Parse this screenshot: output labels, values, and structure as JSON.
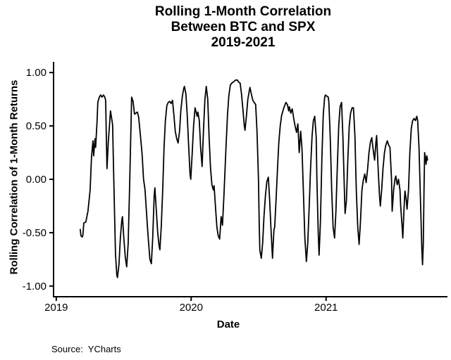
{
  "page": {
    "background": "#ffffff"
  },
  "title": {
    "line1": "Rolling 1-Month Correlation",
    "line2": "Between BTC and SPX",
    "line3": "2019-2021"
  },
  "source": {
    "text": "Source:  YCharts"
  },
  "chart_data": {
    "type": "line",
    "title": "Rolling 1-Month Correlation Between BTC and SPX 2019-2021",
    "xlabel": "Date",
    "ylabel": "Rolling Correlation of 1-Month Returns",
    "grid": false,
    "legend": "none",
    "line_color": "#000000",
    "axis_color": "#000000",
    "xlim": [
      2018.98,
      2021.9
    ],
    "ylim": [
      -1.1,
      1.1
    ],
    "x_ticks": [
      {
        "value": 2019,
        "label": "2019"
      },
      {
        "value": 2020,
        "label": "2020"
      },
      {
        "value": 2021,
        "label": "2021"
      }
    ],
    "y_ticks": [
      {
        "value": 1.0,
        "label": "1.00"
      },
      {
        "value": 0.5,
        "label": "0.50"
      },
      {
        "value": 0.0,
        "label": "0.00"
      },
      {
        "value": -0.5,
        "label": "-0.50"
      },
      {
        "value": -1.0,
        "label": "-1.00"
      }
    ],
    "series": [
      {
        "name": "Rolling 1-month correlation of BTC and SPX returns",
        "points": [
          [
            2019.178,
            -0.47
          ],
          [
            2019.183,
            -0.53
          ],
          [
            2019.193,
            -0.54
          ],
          [
            2019.198,
            -0.52
          ],
          [
            2019.204,
            -0.41
          ],
          [
            2019.219,
            -0.4
          ],
          [
            2019.235,
            -0.3
          ],
          [
            2019.251,
            -0.1
          ],
          [
            2019.261,
            0.2
          ],
          [
            2019.272,
            0.36
          ],
          [
            2019.277,
            0.22
          ],
          [
            2019.287,
            0.38
          ],
          [
            2019.292,
            0.3
          ],
          [
            2019.303,
            0.55
          ],
          [
            2019.308,
            0.72
          ],
          [
            2019.319,
            0.77
          ],
          [
            2019.329,
            0.79
          ],
          [
            2019.339,
            0.77
          ],
          [
            2019.35,
            0.79
          ],
          [
            2019.36,
            0.77
          ],
          [
            2019.366,
            0.74
          ],
          [
            2019.371,
            0.4
          ],
          [
            2019.376,
            0.1
          ],
          [
            2019.386,
            0.35
          ],
          [
            2019.402,
            0.64
          ],
          [
            2019.413,
            0.55
          ],
          [
            2019.418,
            0.51
          ],
          [
            2019.423,
            0.2
          ],
          [
            2019.428,
            -0.1
          ],
          [
            2019.439,
            -0.7
          ],
          [
            2019.449,
            -0.9
          ],
          [
            2019.454,
            -0.92
          ],
          [
            2019.465,
            -0.8
          ],
          [
            2019.475,
            -0.55
          ],
          [
            2019.486,
            -0.38
          ],
          [
            2019.491,
            -0.35
          ],
          [
            2019.501,
            -0.55
          ],
          [
            2019.512,
            -0.73
          ],
          [
            2019.522,
            -0.82
          ],
          [
            2019.533,
            -0.6
          ],
          [
            2019.543,
            -0.1
          ],
          [
            2019.554,
            0.5
          ],
          [
            2019.559,
            0.77
          ],
          [
            2019.569,
            0.73
          ],
          [
            2019.58,
            0.61
          ],
          [
            2019.59,
            0.62
          ],
          [
            2019.601,
            0.63
          ],
          [
            2019.611,
            0.58
          ],
          [
            2019.621,
            0.45
          ],
          [
            2019.632,
            0.3
          ],
          [
            2019.637,
            0.22
          ],
          [
            2019.647,
            0.0
          ],
          [
            2019.653,
            -0.05
          ],
          [
            2019.658,
            -0.1
          ],
          [
            2019.679,
            -0.5
          ],
          [
            2019.694,
            -0.75
          ],
          [
            2019.705,
            -0.79
          ],
          [
            2019.715,
            -0.55
          ],
          [
            2019.726,
            -0.15
          ],
          [
            2019.731,
            -0.08
          ],
          [
            2019.742,
            -0.3
          ],
          [
            2019.752,
            -0.5
          ],
          [
            2019.762,
            -0.62
          ],
          [
            2019.768,
            -0.66
          ],
          [
            2019.778,
            -0.45
          ],
          [
            2019.789,
            -0.1
          ],
          [
            2019.799,
            0.3
          ],
          [
            2019.809,
            0.55
          ],
          [
            2019.82,
            0.69
          ],
          [
            2019.83,
            0.72
          ],
          [
            2019.841,
            0.73
          ],
          [
            2019.851,
            0.71
          ],
          [
            2019.862,
            0.74
          ],
          [
            2019.872,
            0.6
          ],
          [
            2019.882,
            0.45
          ],
          [
            2019.893,
            0.38
          ],
          [
            2019.903,
            0.34
          ],
          [
            2019.914,
            0.45
          ],
          [
            2019.924,
            0.65
          ],
          [
            2019.935,
            0.78
          ],
          [
            2019.945,
            0.85
          ],
          [
            2019.95,
            0.87
          ],
          [
            2019.961,
            0.8
          ],
          [
            2019.971,
            0.6
          ],
          [
            2019.982,
            0.3
          ],
          [
            2019.992,
            0.05
          ],
          [
            2019.997,
            0.0
          ],
          [
            2020.008,
            0.25
          ],
          [
            2020.018,
            0.5
          ],
          [
            2020.029,
            0.67
          ],
          [
            2020.039,
            0.62
          ],
          [
            2020.044,
            0.59
          ],
          [
            2020.05,
            0.63
          ],
          [
            2020.06,
            0.55
          ],
          [
            2020.07,
            0.3
          ],
          [
            2020.081,
            0.12
          ],
          [
            2020.091,
            0.45
          ],
          [
            2020.102,
            0.75
          ],
          [
            2020.112,
            0.87
          ],
          [
            2020.123,
            0.75
          ],
          [
            2020.133,
            0.4
          ],
          [
            2020.144,
            0.1
          ],
          [
            2020.154,
            -0.05
          ],
          [
            2020.164,
            -0.1
          ],
          [
            2020.17,
            -0.06
          ],
          [
            2020.18,
            -0.25
          ],
          [
            2020.191,
            -0.45
          ],
          [
            2020.201,
            -0.53
          ],
          [
            2020.211,
            -0.56
          ],
          [
            2020.222,
            -0.35
          ],
          [
            2020.232,
            -0.43
          ],
          [
            2020.243,
            -0.15
          ],
          [
            2020.258,
            0.3
          ],
          [
            2020.269,
            0.6
          ],
          [
            2020.279,
            0.78
          ],
          [
            2020.29,
            0.88
          ],
          [
            2020.3,
            0.9
          ],
          [
            2020.311,
            0.91
          ],
          [
            2020.321,
            0.92
          ],
          [
            2020.331,
            0.93
          ],
          [
            2020.342,
            0.93
          ],
          [
            2020.352,
            0.91
          ],
          [
            2020.363,
            0.9
          ],
          [
            2020.373,
            0.8
          ],
          [
            2020.384,
            0.65
          ],
          [
            2020.394,
            0.5
          ],
          [
            2020.399,
            0.46
          ],
          [
            2020.41,
            0.6
          ],
          [
            2020.42,
            0.75
          ],
          [
            2020.431,
            0.83
          ],
          [
            2020.436,
            0.86
          ],
          [
            2020.446,
            0.8
          ],
          [
            2020.457,
            0.74
          ],
          [
            2020.467,
            0.72
          ],
          [
            2020.478,
            0.7
          ],
          [
            2020.488,
            0.45
          ],
          [
            2020.499,
            0.0
          ],
          [
            2020.504,
            -0.4
          ],
          [
            2020.509,
            -0.66
          ],
          [
            2020.514,
            -0.7
          ],
          [
            2020.52,
            -0.74
          ],
          [
            2020.53,
            -0.6
          ],
          [
            2020.54,
            -0.35
          ],
          [
            2020.551,
            -0.15
          ],
          [
            2020.561,
            -0.02
          ],
          [
            2020.572,
            0.02
          ],
          [
            2020.582,
            -0.2
          ],
          [
            2020.593,
            -0.5
          ],
          [
            2020.603,
            -0.74
          ],
          [
            2020.608,
            -0.6
          ],
          [
            2020.614,
            -0.47
          ],
          [
            2020.619,
            -0.45
          ],
          [
            2020.629,
            -0.2
          ],
          [
            2020.64,
            0.1
          ],
          [
            2020.65,
            0.35
          ],
          [
            2020.661,
            0.51
          ],
          [
            2020.671,
            0.6
          ],
          [
            2020.687,
            0.67
          ],
          [
            2020.702,
            0.72
          ],
          [
            2020.713,
            0.7
          ],
          [
            2020.723,
            0.64
          ],
          [
            2020.728,
            0.68
          ],
          [
            2020.739,
            0.62
          ],
          [
            2020.749,
            0.66
          ],
          [
            2020.76,
            0.57
          ],
          [
            2020.77,
            0.5
          ],
          [
            2020.781,
            0.44
          ],
          [
            2020.791,
            0.52
          ],
          [
            2020.801,
            0.25
          ],
          [
            2020.812,
            0.45
          ],
          [
            2020.822,
            0.28
          ],
          [
            2020.833,
            -0.15
          ],
          [
            2020.843,
            -0.55
          ],
          [
            2020.854,
            -0.77
          ],
          [
            2020.864,
            -0.6
          ],
          [
            2020.875,
            -0.25
          ],
          [
            2020.885,
            0.1
          ],
          [
            2020.896,
            0.4
          ],
          [
            2020.906,
            0.55
          ],
          [
            2020.916,
            0.59
          ],
          [
            2020.927,
            0.4
          ],
          [
            2020.932,
            0.0
          ],
          [
            2020.942,
            -0.5
          ],
          [
            2020.948,
            -0.71
          ],
          [
            2020.958,
            -0.4
          ],
          [
            2020.969,
            0.2
          ],
          [
            2020.979,
            0.6
          ],
          [
            2020.989,
            0.76
          ],
          [
            2020.995,
            0.79
          ],
          [
            2021.005,
            0.78
          ],
          [
            2021.016,
            0.77
          ],
          [
            2021.021,
            0.72
          ],
          [
            2021.031,
            0.4
          ],
          [
            2021.042,
            -0.1
          ],
          [
            2021.052,
            -0.45
          ],
          [
            2021.063,
            -0.55
          ],
          [
            2021.073,
            -0.3
          ],
          [
            2021.083,
            0.1
          ],
          [
            2021.094,
            0.5
          ],
          [
            2021.104,
            0.68
          ],
          [
            2021.115,
            0.72
          ],
          [
            2021.125,
            0.4
          ],
          [
            2021.136,
            -0.1
          ],
          [
            2021.141,
            -0.32
          ],
          [
            2021.151,
            -0.2
          ],
          [
            2021.162,
            0.2
          ],
          [
            2021.172,
            0.5
          ],
          [
            2021.182,
            0.62
          ],
          [
            2021.193,
            0.67
          ],
          [
            2021.203,
            0.67
          ],
          [
            2021.214,
            0.4
          ],
          [
            2021.224,
            -0.1
          ],
          [
            2021.235,
            -0.45
          ],
          [
            2021.245,
            -0.61
          ],
          [
            2021.255,
            -0.4
          ],
          [
            2021.266,
            -0.1
          ],
          [
            2021.276,
            -0.01
          ],
          [
            2021.287,
            0.05
          ],
          [
            2021.297,
            -0.03
          ],
          [
            2021.308,
            0.1
          ],
          [
            2021.318,
            0.25
          ],
          [
            2021.329,
            0.35
          ],
          [
            2021.339,
            0.39
          ],
          [
            2021.349,
            0.28
          ],
          [
            2021.36,
            0.18
          ],
          [
            2021.37,
            0.35
          ],
          [
            2021.375,
            0.41
          ],
          [
            2021.386,
            0.1
          ],
          [
            2021.396,
            -0.15
          ],
          [
            2021.402,
            -0.25
          ],
          [
            2021.412,
            -0.1
          ],
          [
            2021.422,
            0.1
          ],
          [
            2021.433,
            0.25
          ],
          [
            2021.443,
            0.32
          ],
          [
            2021.454,
            0.36
          ],
          [
            2021.464,
            0.32
          ],
          [
            2021.474,
            0.3
          ],
          [
            2021.485,
            0.0
          ],
          [
            2021.49,
            -0.3
          ],
          [
            2021.501,
            -0.1
          ],
          [
            2021.511,
            0.0
          ],
          [
            2021.517,
            0.03
          ],
          [
            2021.527,
            -0.05
          ],
          [
            2021.537,
            0.0
          ],
          [
            2021.548,
            -0.1
          ],
          [
            2021.553,
            -0.25
          ],
          [
            2021.564,
            -0.45
          ],
          [
            2021.569,
            -0.55
          ],
          [
            2021.579,
            -0.25
          ],
          [
            2021.585,
            -0.11
          ],
          [
            2021.595,
            -0.2
          ],
          [
            2021.6,
            -0.28
          ],
          [
            2021.611,
            -0.1
          ],
          [
            2021.621,
            0.25
          ],
          [
            2021.632,
            0.48
          ],
          [
            2021.642,
            0.55
          ],
          [
            2021.653,
            0.57
          ],
          [
            2021.663,
            0.55
          ],
          [
            2021.673,
            0.59
          ],
          [
            2021.679,
            0.55
          ],
          [
            2021.689,
            0.3
          ],
          [
            2021.7,
            -0.2
          ],
          [
            2021.71,
            -0.65
          ],
          [
            2021.715,
            -0.8
          ],
          [
            2021.721,
            -0.6
          ],
          [
            2021.726,
            -0.1
          ],
          [
            2021.731,
            0.25
          ],
          [
            2021.736,
            0.2
          ],
          [
            2021.741,
            0.14
          ],
          [
            2021.747,
            0.22
          ],
          [
            2021.752,
            0.18
          ]
        ]
      }
    ]
  }
}
